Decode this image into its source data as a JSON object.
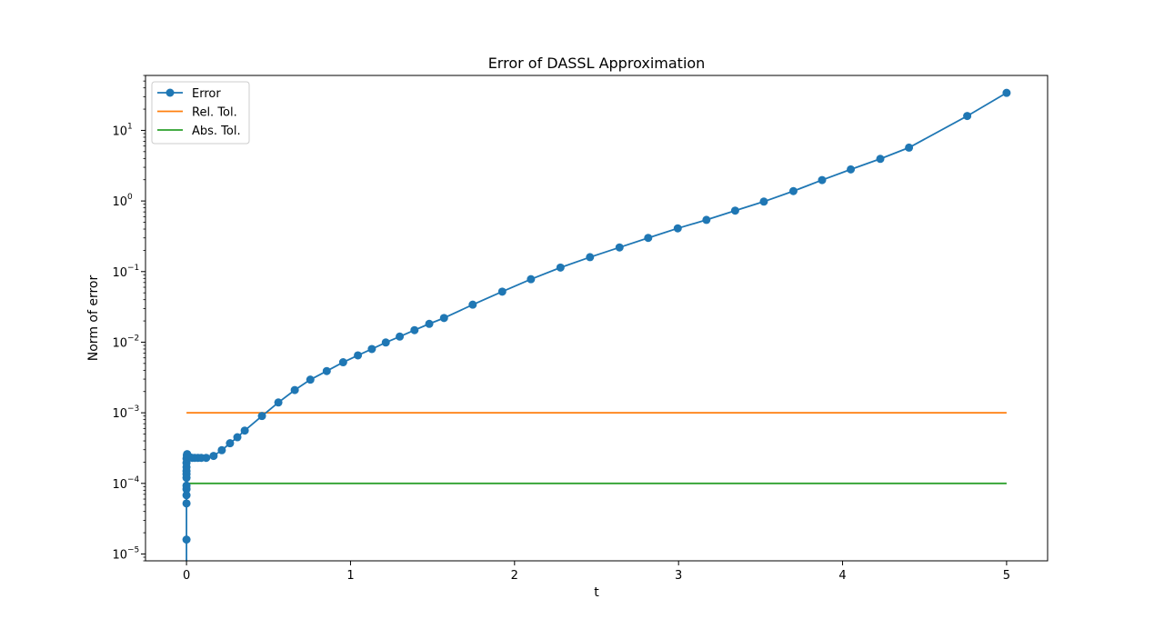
{
  "chart_data": {
    "type": "line",
    "title": "Error of DASSL Approximation",
    "xlabel": "t",
    "ylabel": "Norm of error",
    "yscale": "log",
    "xlim": [
      -0.25,
      5.25
    ],
    "ylim": [
      8e-06,
      60
    ],
    "xticks": [
      0,
      1,
      2,
      3,
      4,
      5
    ],
    "xtick_labels": [
      "0",
      "1",
      "2",
      "3",
      "4",
      "5"
    ],
    "yticks": [
      -5,
      -4,
      -3,
      -2,
      -1,
      0,
      1
    ],
    "ytick_labels": [
      "10",
      "10",
      "10",
      "10",
      "10",
      "10",
      "10"
    ],
    "ytick_exponents": [
      "−5",
      "−4",
      "−3",
      "−2",
      "−1",
      "0",
      "1"
    ],
    "grid": false,
    "legend_position": "top-left",
    "series": [
      {
        "name": "Error",
        "color": "#1f77b4",
        "marker": "circle",
        "x": [
          0.0,
          0.0,
          0.0,
          0.0,
          0.0,
          0.0,
          0.0,
          0.0,
          0.0,
          0.0,
          0.0,
          0.0,
          0.002,
          0.004,
          0.006,
          0.01,
          0.02,
          0.035,
          0.05,
          0.07,
          0.09,
          0.12,
          0.165,
          0.215,
          0.265,
          0.31,
          0.355,
          0.46,
          0.56,
          0.66,
          0.755,
          0.855,
          0.955,
          1.045,
          1.13,
          1.215,
          1.3,
          1.39,
          1.48,
          1.57,
          1.745,
          1.925,
          2.1,
          2.28,
          2.46,
          2.64,
          2.815,
          2.995,
          3.17,
          3.345,
          3.52,
          3.7,
          3.875,
          4.05,
          4.23,
          4.405,
          4.76,
          5.0
        ],
        "y": [
          5e-06,
          1.6e-05,
          5.2e-05,
          6.8e-05,
          8.3e-05,
          9.3e-05,
          0.00012,
          0.000135,
          0.00015,
          0.00017,
          0.000195,
          0.000225,
          0.00025,
          0.00026,
          0.00025,
          0.00024,
          0.000235,
          0.00023,
          0.00023,
          0.00023,
          0.00023,
          0.00023,
          0.000245,
          0.000295,
          0.00037,
          0.00045,
          0.00056,
          0.0009,
          0.0014,
          0.0021,
          0.00295,
          0.0039,
          0.0052,
          0.0065,
          0.008,
          0.0099,
          0.012,
          0.0148,
          0.0182,
          0.022,
          0.034,
          0.052,
          0.078,
          0.114,
          0.16,
          0.22,
          0.3,
          0.41,
          0.54,
          0.73,
          0.98,
          1.38,
          1.98,
          2.8,
          3.95,
          5.7,
          16.0,
          34.0
        ]
      },
      {
        "name": "Rel. Tol.",
        "color": "#ff7f0e",
        "marker": "none",
        "x": [
          0,
          5
        ],
        "y": [
          0.001,
          0.001
        ]
      },
      {
        "name": "Abs. Tol.",
        "color": "#2ca02c",
        "marker": "none",
        "x": [
          0,
          5
        ],
        "y": [
          0.0001,
          0.0001
        ]
      }
    ]
  }
}
